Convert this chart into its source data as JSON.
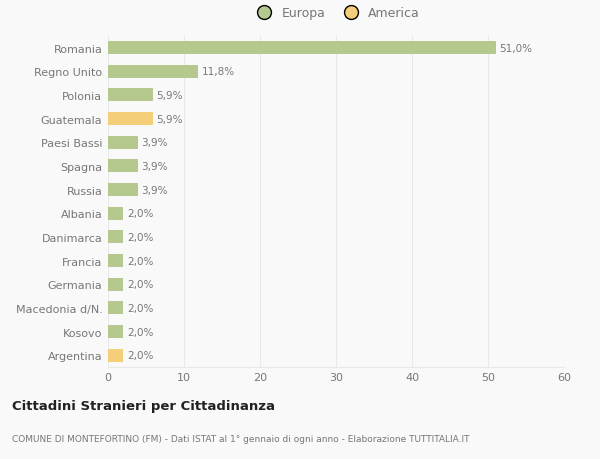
{
  "countries": [
    "Romania",
    "Regno Unito",
    "Polonia",
    "Guatemala",
    "Paesi Bassi",
    "Spagna",
    "Russia",
    "Albania",
    "Danimarca",
    "Francia",
    "Germania",
    "Macedonia d/N.",
    "Kosovo",
    "Argentina"
  ],
  "values": [
    51.0,
    11.8,
    5.9,
    5.9,
    3.9,
    3.9,
    3.9,
    2.0,
    2.0,
    2.0,
    2.0,
    2.0,
    2.0,
    2.0
  ],
  "labels": [
    "51,0%",
    "11,8%",
    "5,9%",
    "5,9%",
    "3,9%",
    "3,9%",
    "3,9%",
    "2,0%",
    "2,0%",
    "2,0%",
    "2,0%",
    "2,0%",
    "2,0%",
    "2,0%"
  ],
  "continents": [
    "Europa",
    "Europa",
    "Europa",
    "America",
    "Europa",
    "Europa",
    "Europa",
    "Europa",
    "Europa",
    "Europa",
    "Europa",
    "Europa",
    "Europa",
    "America"
  ],
  "europa_color": "#b5c98e",
  "america_color": "#f5ce7a",
  "background_color": "#f9f9f9",
  "grid_color": "#e8e8e8",
  "text_color": "#777777",
  "title_color": "#222222",
  "xlim": [
    0,
    60
  ],
  "xticks": [
    0,
    10,
    20,
    30,
    40,
    50,
    60
  ],
  "title": "Cittadini Stranieri per Cittadinanza",
  "subtitle": "COMUNE DI MONTEFORTINO (FM) - Dati ISTAT al 1° gennaio di ogni anno - Elaborazione TUTTITALIA.IT",
  "legend_europa": "Europa",
  "legend_america": "America",
  "bar_height": 0.55
}
